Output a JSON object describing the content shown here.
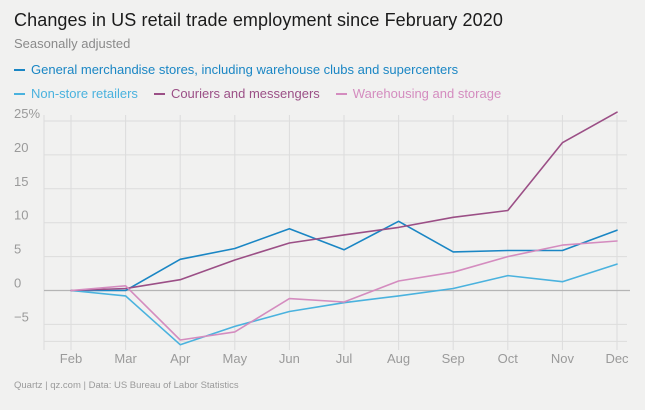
{
  "title": "Changes in US retail trade employment since February 2020",
  "subtitle": "Seasonally adjusted",
  "footer": "Quartz | qz.com | Data: US Bureau of Labor Statistics",
  "colors": {
    "background": "#f1f1f0",
    "grid": "#dcdcdc",
    "zero_line": "#b5b5b5"
  },
  "chart_data": {
    "type": "line",
    "title": "Changes in US retail trade employment since February 2020",
    "subtitle": "Seasonally adjusted",
    "categories": [
      "Feb",
      "Mar",
      "Apr",
      "May",
      "Jun",
      "Jul",
      "Aug",
      "Sep",
      "Oct",
      "Nov",
      "Dec"
    ],
    "ylim": [
      -8,
      25
    ],
    "yticks": [
      -5,
      0,
      5,
      10,
      15,
      20,
      25
    ],
    "ytick_labels": [
      "−5",
      "0",
      "5",
      "10",
      "15",
      "20",
      "25%"
    ],
    "grid": true,
    "legend_position": "top-left",
    "series": [
      {
        "name": "General merchandise stores, including warehouse clubs and supercenters",
        "color": "#1a86c4",
        "values": [
          0,
          0,
          4.6,
          6.2,
          9.1,
          6.0,
          10.2,
          5.7,
          5.9,
          5.9,
          8.9
        ]
      },
      {
        "name": "Non-store retailers",
        "color": "#4ab2de",
        "values": [
          0,
          -0.8,
          -8.0,
          -5.3,
          -3.1,
          -1.8,
          -0.8,
          0.3,
          2.2,
          1.3,
          3.9
        ]
      },
      {
        "name": "Couriers and messengers",
        "color": "#9b4f86",
        "values": [
          0,
          0.3,
          1.6,
          4.5,
          7.0,
          8.2,
          9.3,
          10.8,
          11.8,
          21.8,
          26.3
        ]
      },
      {
        "name": "Warehousing and storage",
        "color": "#d48cbf",
        "values": [
          0,
          0.7,
          -7.3,
          -6.1,
          -1.2,
          -1.7,
          1.4,
          2.7,
          5.0,
          6.7,
          7.3
        ]
      }
    ]
  }
}
